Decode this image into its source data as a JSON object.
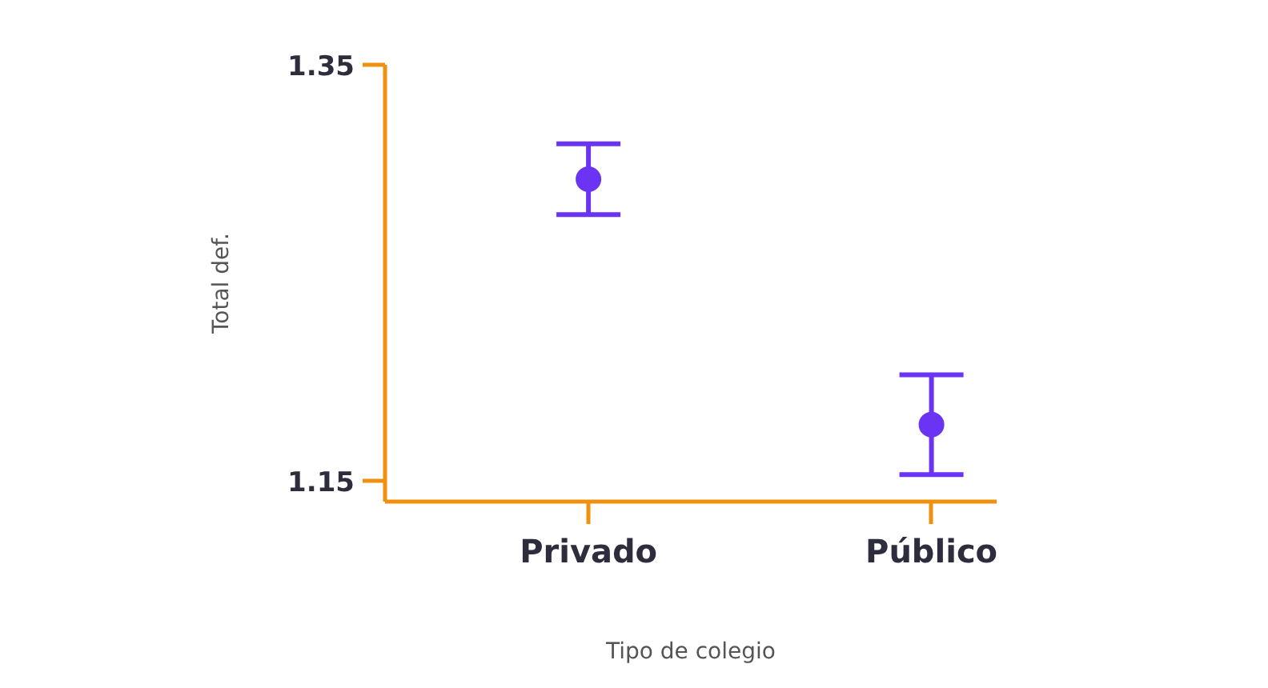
{
  "chart_data": {
    "type": "scatter",
    "xlabel": "Tipo de colegio",
    "ylabel": "Total def.",
    "categories": [
      "Privado",
      "Público"
    ],
    "series": [
      {
        "color": "#6b34f5",
        "values": [
          1.295,
          1.177
        ],
        "errors": [
          [
            1.278,
            1.312
          ],
          [
            1.153,
            1.201
          ]
        ]
      }
    ],
    "ylim": [
      1.14,
      1.35
    ],
    "yticks": [
      1.15,
      1.35
    ],
    "grid": false,
    "marker": "circle"
  }
}
